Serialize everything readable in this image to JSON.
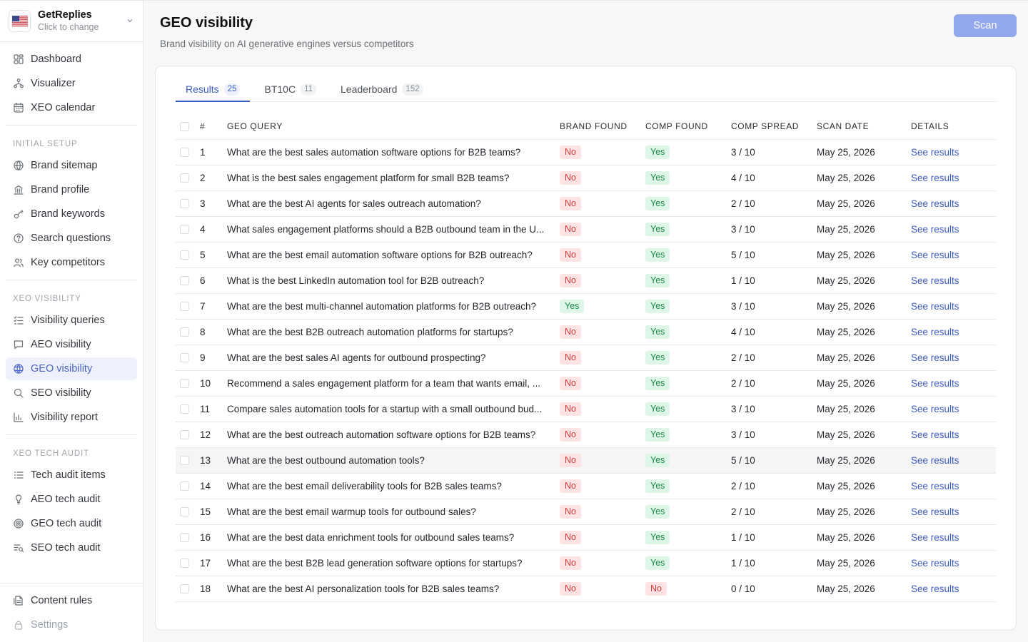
{
  "workspace": {
    "name": "GetReplies",
    "sub": "Click to change"
  },
  "sidebar": {
    "top": [
      {
        "label": "Dashboard",
        "icon": "dashboard-icon"
      },
      {
        "label": "Visualizer",
        "icon": "visualizer-icon"
      },
      {
        "label": "XEO calendar",
        "icon": "calendar-icon"
      }
    ],
    "sections": [
      {
        "title": "INITIAL SETUP",
        "items": [
          {
            "label": "Brand sitemap",
            "icon": "globe-icon"
          },
          {
            "label": "Brand profile",
            "icon": "building-icon"
          },
          {
            "label": "Brand keywords",
            "icon": "key-icon"
          },
          {
            "label": "Search questions",
            "icon": "question-icon"
          },
          {
            "label": "Key competitors",
            "icon": "users-icon"
          }
        ]
      },
      {
        "title": "XEO VISIBILITY",
        "items": [
          {
            "label": "Visibility queries",
            "icon": "list-check-icon"
          },
          {
            "label": "AEO visibility",
            "icon": "chat-icon"
          },
          {
            "label": "GEO visibility",
            "icon": "globe-grid-icon",
            "active": true
          },
          {
            "label": "SEO visibility",
            "icon": "search-icon"
          },
          {
            "label": "Visibility report",
            "icon": "bar-chart-icon"
          }
        ]
      },
      {
        "title": "XEO TECH AUDIT",
        "items": [
          {
            "label": "Tech audit items",
            "icon": "list-icon"
          },
          {
            "label": "AEO tech audit",
            "icon": "bulb-icon"
          },
          {
            "label": "GEO tech audit",
            "icon": "target-icon"
          },
          {
            "label": "SEO tech audit",
            "icon": "list-search-icon"
          }
        ]
      }
    ],
    "bottom": [
      {
        "label": "Content rules",
        "icon": "document-icon"
      },
      {
        "label": "Settings",
        "icon": "lock-icon",
        "muted": true
      }
    ]
  },
  "header": {
    "title": "GEO visibility",
    "subtitle": "Brand visibility on AI generative engines versus competitors",
    "scan_label": "Scan"
  },
  "tabs": [
    {
      "label": "Results",
      "count": "25",
      "active": true
    },
    {
      "label": "BT10C",
      "count": "11"
    },
    {
      "label": "Leaderboard",
      "count": "152"
    }
  ],
  "table": {
    "columns": [
      "#",
      "GEO QUERY",
      "BRAND FOUND",
      "COMP FOUND",
      "COMP SPREAD",
      "SCAN DATE",
      "DETAILS"
    ],
    "link_label": "See results",
    "rows": [
      {
        "n": "1",
        "query": "What are the best sales automation software options for B2B teams?",
        "brand": "No",
        "comp": "Yes",
        "spread": "3 / 10",
        "date": "May 25, 2026"
      },
      {
        "n": "2",
        "query": "What is the best sales engagement platform for small B2B teams?",
        "brand": "No",
        "comp": "Yes",
        "spread": "4 / 10",
        "date": "May 25, 2026"
      },
      {
        "n": "3",
        "query": "What are the best AI agents for sales outreach automation?",
        "brand": "No",
        "comp": "Yes",
        "spread": "2 / 10",
        "date": "May 25, 2026"
      },
      {
        "n": "4",
        "query": "What sales engagement platforms should a B2B outbound team in the U...",
        "brand": "No",
        "comp": "Yes",
        "spread": "3 / 10",
        "date": "May 25, 2026"
      },
      {
        "n": "5",
        "query": "What are the best email automation software options for B2B outreach?",
        "brand": "No",
        "comp": "Yes",
        "spread": "5 / 10",
        "date": "May 25, 2026"
      },
      {
        "n": "6",
        "query": "What is the best LinkedIn automation tool for B2B outreach?",
        "brand": "No",
        "comp": "Yes",
        "spread": "1 / 10",
        "date": "May 25, 2026"
      },
      {
        "n": "7",
        "query": "What are the best multi-channel automation platforms for B2B outreach?",
        "brand": "Yes",
        "comp": "Yes",
        "spread": "3 / 10",
        "date": "May 25, 2026"
      },
      {
        "n": "8",
        "query": "What are the best B2B outreach automation platforms for startups?",
        "brand": "No",
        "comp": "Yes",
        "spread": "4 / 10",
        "date": "May 25, 2026"
      },
      {
        "n": "9",
        "query": "What are the best sales AI agents for outbound prospecting?",
        "brand": "No",
        "comp": "Yes",
        "spread": "2 / 10",
        "date": "May 25, 2026"
      },
      {
        "n": "10",
        "query": "Recommend a sales engagement platform for a team that wants email, ...",
        "brand": "No",
        "comp": "Yes",
        "spread": "2 / 10",
        "date": "May 25, 2026"
      },
      {
        "n": "11",
        "query": "Compare sales automation tools for a startup with a small outbound bud...",
        "brand": "No",
        "comp": "Yes",
        "spread": "3 / 10",
        "date": "May 25, 2026"
      },
      {
        "n": "12",
        "query": "What are the best outreach automation software options for B2B teams?",
        "brand": "No",
        "comp": "Yes",
        "spread": "3 / 10",
        "date": "May 25, 2026"
      },
      {
        "n": "13",
        "query": "What are the best outbound automation tools?",
        "brand": "No",
        "comp": "Yes",
        "spread": "5 / 10",
        "date": "May 25, 2026",
        "highlight": true
      },
      {
        "n": "14",
        "query": "What are the best email deliverability tools for B2B sales teams?",
        "brand": "No",
        "comp": "Yes",
        "spread": "2 / 10",
        "date": "May 25, 2026"
      },
      {
        "n": "15",
        "query": "What are the best email warmup tools for outbound sales?",
        "brand": "No",
        "comp": "Yes",
        "spread": "2 / 10",
        "date": "May 25, 2026"
      },
      {
        "n": "16",
        "query": "What are the best data enrichment tools for outbound sales teams?",
        "brand": "No",
        "comp": "Yes",
        "spread": "1 / 10",
        "date": "May 25, 2026"
      },
      {
        "n": "17",
        "query": "What are the best B2B lead generation software options for startups?",
        "brand": "No",
        "comp": "Yes",
        "spread": "1 / 10",
        "date": "May 25, 2026"
      },
      {
        "n": "18",
        "query": "What are the best AI personalization tools for B2B sales teams?",
        "brand": "No",
        "comp": "No",
        "spread": "0 / 10",
        "date": "May 25, 2026"
      }
    ]
  }
}
